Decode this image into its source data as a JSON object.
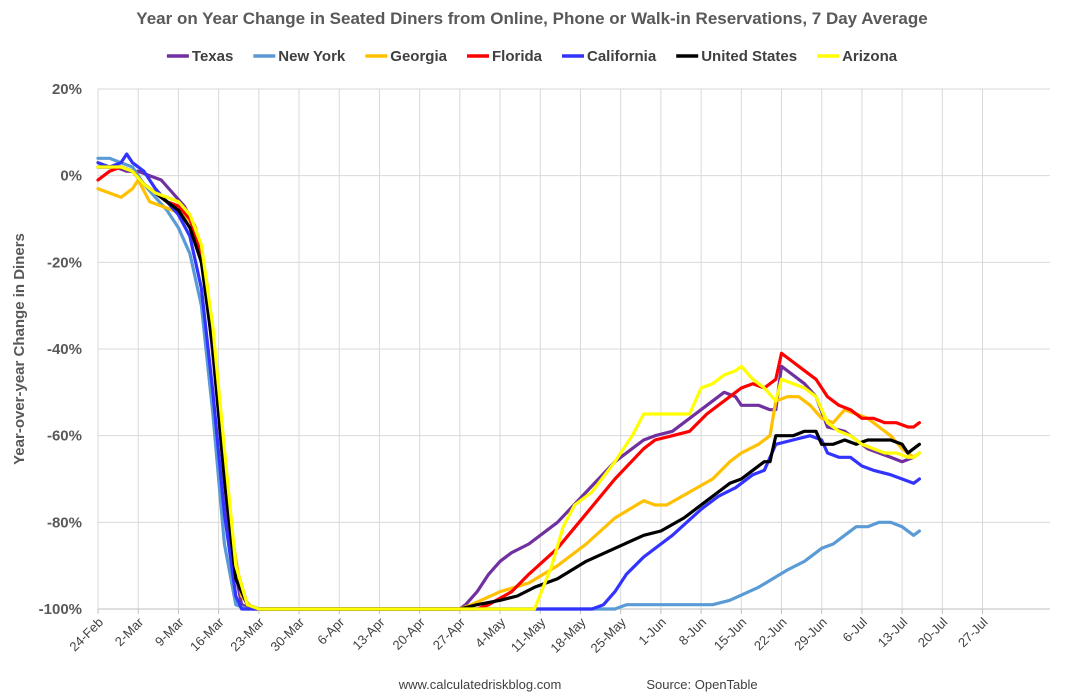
{
  "chart_data": {
    "type": "line",
    "title": "Year on Year Change in Seated Diners from Online, Phone or Walk-in Reservations, 7 Day Average",
    "ylabel": "Year-over-year Change in Diners",
    "xlabel": "",
    "ylim": [
      -100,
      20
    ],
    "yticks": [
      20,
      0,
      -20,
      -40,
      -60,
      -80,
      -100
    ],
    "ytick_labels": [
      "20%",
      "0%",
      "-20%",
      "-40%",
      "-60%",
      "-80%",
      "-100%"
    ],
    "xlim": [
      0,
      160
    ],
    "xtick_positions": [
      0,
      7,
      14,
      21,
      28,
      35,
      42,
      49,
      56,
      63,
      70,
      77,
      84,
      91,
      98,
      105,
      112,
      119,
      126,
      133,
      140,
      147,
      154
    ],
    "xtick_labels": [
      "24-Feb",
      "2-Mar",
      "9-Mar",
      "16-Mar",
      "23-Mar",
      "30-Mar",
      "6-Apr",
      "13-Apr",
      "20-Apr",
      "27-Apr",
      "4-May",
      "11-May",
      "18-May",
      "25-May",
      "1-Jun",
      "8-Jun",
      "15-Jun",
      "22-Jun",
      "29-Jun",
      "6-Jul",
      "13-Jul",
      "20-Jul",
      "27-Jul"
    ],
    "legend_position": "top",
    "series": [
      {
        "name": "Texas",
        "color": "#7030a0",
        "points": [
          [
            0,
            2
          ],
          [
            3,
            2
          ],
          [
            5,
            1
          ],
          [
            7,
            1
          ],
          [
            9,
            0
          ],
          [
            11,
            -1
          ],
          [
            13,
            -4
          ],
          [
            15,
            -7
          ],
          [
            17,
            -12
          ],
          [
            19,
            -28
          ],
          [
            21,
            -55
          ],
          [
            23,
            -85
          ],
          [
            25,
            -99
          ],
          [
            27,
            -100
          ],
          [
            63,
            -100
          ],
          [
            64,
            -99
          ],
          [
            66,
            -96
          ],
          [
            68,
            -92
          ],
          [
            70,
            -89
          ],
          [
            72,
            -87
          ],
          [
            75,
            -85
          ],
          [
            80,
            -80
          ],
          [
            85,
            -73
          ],
          [
            90,
            -66
          ],
          [
            95,
            -61
          ],
          [
            97,
            -60
          ],
          [
            100,
            -59
          ],
          [
            105,
            -54
          ],
          [
            109,
            -50
          ],
          [
            111,
            -51
          ],
          [
            112,
            -53
          ],
          [
            115,
            -53
          ],
          [
            117,
            -54
          ],
          [
            118,
            -54
          ],
          [
            119,
            -44
          ],
          [
            121,
            -46
          ],
          [
            123,
            -48
          ],
          [
            125,
            -51
          ],
          [
            127,
            -58
          ],
          [
            130,
            -59
          ],
          [
            132,
            -61
          ],
          [
            134,
            -63
          ],
          [
            136,
            -64
          ],
          [
            138,
            -65
          ],
          [
            140,
            -66
          ],
          [
            142,
            -65
          ],
          [
            143,
            -64
          ]
        ]
      },
      {
        "name": "New York",
        "color": "#5b9bd5",
        "points": [
          [
            0,
            4
          ],
          [
            2,
            4
          ],
          [
            4,
            3
          ],
          [
            6,
            2
          ],
          [
            8,
            -2
          ],
          [
            10,
            -5
          ],
          [
            12,
            -8
          ],
          [
            14,
            -12
          ],
          [
            16,
            -18
          ],
          [
            18,
            -30
          ],
          [
            20,
            -55
          ],
          [
            22,
            -85
          ],
          [
            24,
            -99
          ],
          [
            26,
            -100
          ],
          [
            90,
            -100
          ],
          [
            92,
            -99
          ],
          [
            107,
            -99
          ],
          [
            110,
            -98
          ],
          [
            115,
            -95
          ],
          [
            120,
            -91
          ],
          [
            123,
            -89
          ],
          [
            126,
            -86
          ],
          [
            128,
            -85
          ],
          [
            130,
            -83
          ],
          [
            132,
            -81
          ],
          [
            134,
            -81
          ],
          [
            136,
            -80
          ],
          [
            138,
            -80
          ],
          [
            140,
            -81
          ],
          [
            142,
            -83
          ],
          [
            143,
            -82
          ]
        ]
      },
      {
        "name": "Georgia",
        "color": "#ffc000",
        "points": [
          [
            0,
            -3
          ],
          [
            2,
            -4
          ],
          [
            4,
            -5
          ],
          [
            6,
            -3
          ],
          [
            7,
            -1
          ],
          [
            9,
            -6
          ],
          [
            11,
            -7
          ],
          [
            13,
            -8
          ],
          [
            15,
            -9
          ],
          [
            17,
            -12
          ],
          [
            19,
            -25
          ],
          [
            21,
            -50
          ],
          [
            23,
            -80
          ],
          [
            25,
            -97
          ],
          [
            27,
            -100
          ],
          [
            63,
            -100
          ],
          [
            65,
            -99
          ],
          [
            70,
            -96
          ],
          [
            75,
            -94
          ],
          [
            80,
            -90
          ],
          [
            85,
            -85
          ],
          [
            90,
            -79
          ],
          [
            95,
            -75
          ],
          [
            97,
            -76
          ],
          [
            99,
            -76
          ],
          [
            103,
            -73
          ],
          [
            107,
            -70
          ],
          [
            110,
            -66
          ],
          [
            112,
            -64
          ],
          [
            115,
            -62
          ],
          [
            117,
            -60
          ],
          [
            118,
            -52
          ],
          [
            120,
            -51
          ],
          [
            122,
            -51
          ],
          [
            124,
            -53
          ],
          [
            126,
            -56
          ],
          [
            128,
            -57
          ],
          [
            130,
            -54
          ],
          [
            132,
            -55
          ],
          [
            134,
            -56
          ],
          [
            136,
            -58
          ],
          [
            138,
            -60
          ],
          [
            140,
            -63
          ],
          [
            142,
            -65
          ],
          [
            143,
            -64
          ]
        ]
      },
      {
        "name": "Florida",
        "color": "#ff0000",
        "points": [
          [
            0,
            -1
          ],
          [
            2,
            1
          ],
          [
            4,
            2
          ],
          [
            6,
            1
          ],
          [
            8,
            -2
          ],
          [
            10,
            -4
          ],
          [
            12,
            -6
          ],
          [
            14,
            -7
          ],
          [
            16,
            -10
          ],
          [
            18,
            -18
          ],
          [
            20,
            -38
          ],
          [
            22,
            -65
          ],
          [
            24,
            -90
          ],
          [
            26,
            -99
          ],
          [
            28,
            -100
          ],
          [
            66,
            -100
          ],
          [
            68,
            -99
          ],
          [
            72,
            -96
          ],
          [
            75,
            -92
          ],
          [
            80,
            -86
          ],
          [
            85,
            -78
          ],
          [
            90,
            -70
          ],
          [
            95,
            -63
          ],
          [
            97,
            -61
          ],
          [
            100,
            -60
          ],
          [
            103,
            -59
          ],
          [
            106,
            -55
          ],
          [
            108,
            -53
          ],
          [
            110,
            -51
          ],
          [
            112,
            -49
          ],
          [
            114,
            -48
          ],
          [
            116,
            -49
          ],
          [
            118,
            -47
          ],
          [
            119,
            -41
          ],
          [
            121,
            -43
          ],
          [
            123,
            -45
          ],
          [
            125,
            -47
          ],
          [
            127,
            -51
          ],
          [
            129,
            -53
          ],
          [
            131,
            -54
          ],
          [
            133,
            -56
          ],
          [
            135,
            -56
          ],
          [
            137,
            -57
          ],
          [
            139,
            -57
          ],
          [
            141,
            -58
          ],
          [
            142,
            -58
          ],
          [
            143,
            -57
          ]
        ]
      },
      {
        "name": "California",
        "color": "#3333ff",
        "points": [
          [
            0,
            3
          ],
          [
            2,
            2
          ],
          [
            4,
            3
          ],
          [
            5,
            5
          ],
          [
            6,
            3
          ],
          [
            8,
            1
          ],
          [
            10,
            -3
          ],
          [
            12,
            -6
          ],
          [
            14,
            -9
          ],
          [
            16,
            -14
          ],
          [
            18,
            -26
          ],
          [
            20,
            -50
          ],
          [
            22,
            -78
          ],
          [
            24,
            -97
          ],
          [
            25,
            -100
          ],
          [
            78,
            -100
          ],
          [
            81,
            -100
          ],
          [
            86,
            -100
          ],
          [
            88,
            -99
          ],
          [
            90,
            -96
          ],
          [
            92,
            -92
          ],
          [
            95,
            -88
          ],
          [
            100,
            -83
          ],
          [
            105,
            -77
          ],
          [
            108,
            -74
          ],
          [
            111,
            -72
          ],
          [
            114,
            -69
          ],
          [
            116,
            -68
          ],
          [
            118,
            -62
          ],
          [
            121,
            -61
          ],
          [
            124,
            -60
          ],
          [
            126,
            -61
          ],
          [
            127,
            -64
          ],
          [
            129,
            -65
          ],
          [
            131,
            -65
          ],
          [
            133,
            -67
          ],
          [
            135,
            -68
          ],
          [
            138,
            -69
          ],
          [
            140,
            -70
          ],
          [
            142,
            -71
          ],
          [
            143,
            -70
          ]
        ]
      },
      {
        "name": "United States",
        "color": "#000000",
        "points": [
          [
            0,
            2
          ],
          [
            2,
            2
          ],
          [
            4,
            2
          ],
          [
            6,
            1
          ],
          [
            8,
            -2
          ],
          [
            10,
            -4
          ],
          [
            12,
            -6
          ],
          [
            14,
            -8
          ],
          [
            16,
            -12
          ],
          [
            18,
            -20
          ],
          [
            20,
            -40
          ],
          [
            22,
            -70
          ],
          [
            24,
            -93
          ],
          [
            26,
            -99
          ],
          [
            28,
            -100
          ],
          [
            63,
            -100
          ],
          [
            66,
            -99
          ],
          [
            70,
            -98
          ],
          [
            73,
            -97
          ],
          [
            76,
            -95
          ],
          [
            80,
            -93
          ],
          [
            85,
            -89
          ],
          [
            90,
            -86
          ],
          [
            95,
            -83
          ],
          [
            98,
            -82
          ],
          [
            102,
            -79
          ],
          [
            106,
            -75
          ],
          [
            108,
            -73
          ],
          [
            110,
            -71
          ],
          [
            112,
            -70
          ],
          [
            114,
            -68
          ],
          [
            116,
            -66
          ],
          [
            117,
            -66
          ],
          [
            118,
            -60
          ],
          [
            121,
            -60
          ],
          [
            123,
            -59
          ],
          [
            125,
            -59
          ],
          [
            126,
            -62
          ],
          [
            128,
            -62
          ],
          [
            130,
            -61
          ],
          [
            132,
            -62
          ],
          [
            134,
            -61
          ],
          [
            136,
            -61
          ],
          [
            138,
            -61
          ],
          [
            140,
            -62
          ],
          [
            141,
            -64
          ],
          [
            142,
            -63
          ],
          [
            143,
            -62
          ]
        ]
      },
      {
        "name": "Arizona",
        "color": "#ffff00",
        "points": [
          [
            0,
            2
          ],
          [
            2,
            2
          ],
          [
            4,
            2
          ],
          [
            6,
            1
          ],
          [
            8,
            -2
          ],
          [
            10,
            -4
          ],
          [
            12,
            -5
          ],
          [
            14,
            -6
          ],
          [
            16,
            -9
          ],
          [
            18,
            -16
          ],
          [
            20,
            -35
          ],
          [
            22,
            -63
          ],
          [
            24,
            -90
          ],
          [
            26,
            -99
          ],
          [
            28,
            -100
          ],
          [
            76,
            -100
          ],
          [
            79,
            -90
          ],
          [
            81,
            -81
          ],
          [
            83,
            -76
          ],
          [
            86,
            -73
          ],
          [
            90,
            -66
          ],
          [
            93,
            -60
          ],
          [
            95,
            -55
          ],
          [
            98,
            -55
          ],
          [
            101,
            -55
          ],
          [
            103,
            -55
          ],
          [
            105,
            -49
          ],
          [
            107,
            -48
          ],
          [
            109,
            -46
          ],
          [
            111,
            -45
          ],
          [
            112,
            -44
          ],
          [
            114,
            -47
          ],
          [
            116,
            -49
          ],
          [
            118,
            -52
          ],
          [
            119,
            -47
          ],
          [
            121,
            -48
          ],
          [
            123,
            -49
          ],
          [
            125,
            -51
          ],
          [
            127,
            -57
          ],
          [
            129,
            -59
          ],
          [
            131,
            -60
          ],
          [
            133,
            -62
          ],
          [
            135,
            -63
          ],
          [
            137,
            -64
          ],
          [
            139,
            -64
          ],
          [
            141,
            -65
          ],
          [
            142,
            -65
          ],
          [
            143,
            -64
          ]
        ]
      }
    ],
    "footer_left": "www.calculatedriskblog.com",
    "footer_right": "Source: OpenTable"
  }
}
